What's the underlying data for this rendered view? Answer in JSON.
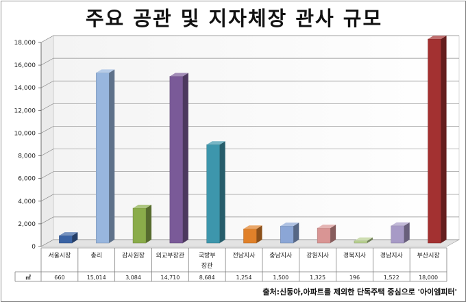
{
  "chart_data": {
    "type": "bar",
    "title": "주요 공관 및 지자체장 관사 규모",
    "ylim": [
      0,
      18000
    ],
    "yticks": [
      "0",
      "2,000",
      "4,000",
      "6,000",
      "8,000",
      "10,000",
      "12,000",
      "14,000",
      "16,000",
      "18,000"
    ],
    "categories": [
      [
        "서울시장"
      ],
      [
        "총리"
      ],
      [
        "감사원장"
      ],
      [
        "외교부장관"
      ],
      [
        "국방부",
        "장관"
      ],
      [
        "전남지사"
      ],
      [
        "충남지사"
      ],
      [
        "강원지사"
      ],
      [
        "경북지사"
      ],
      [
        "경남지사"
      ],
      [
        "부산시장"
      ]
    ],
    "series": [
      {
        "name": "㎡",
        "values": [
          660,
          15014,
          3084,
          14710,
          8684,
          1254,
          1500,
          1325,
          196,
          1522,
          18000
        ],
        "labels": [
          "660",
          "15,014",
          "3,084",
          "14,710",
          "8,684",
          "1,254",
          "1,500",
          "1,325",
          "196",
          "1,522",
          "18,000"
        ]
      }
    ],
    "colors": [
      "#3a63a4",
      "#98b6de",
      "#8aac4a",
      "#7a5a98",
      "#3d96ac",
      "#e0812a",
      "#8ba6d6",
      "#d99594",
      "#b7cf90",
      "#a79ac6",
      "#a33131"
    ],
    "source": "출처:신동아,아파트를 제외한 단독주택 중심으로 '아이엠피터'"
  }
}
